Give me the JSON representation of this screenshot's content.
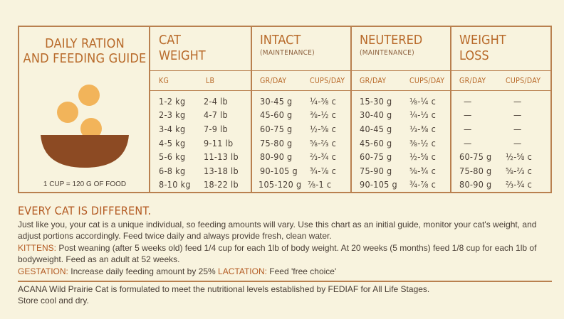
{
  "brand": {
    "title_line1": "DAILY RATION",
    "title_line2": "AND FEEDING GUIDE",
    "cup_note": "1 CUP = 120 G OF FOOD"
  },
  "headers": {
    "cat_weight": {
      "line1": "CAT",
      "line2": "WEIGHT",
      "sub_kg": "KG",
      "sub_lb": "LB"
    },
    "intact": {
      "line1": "INTACT",
      "sub": "(MAINTENANCE)",
      "gr": "GR/DAY",
      "cups": "CUPS/DAY"
    },
    "neutered": {
      "line1": "NEUTERED",
      "sub": "(MAINTENANCE)",
      "gr": "GR/DAY",
      "cups": "CUPS/DAY"
    },
    "weight_loss": {
      "line1": "WEIGHT",
      "line2": "LOSS",
      "gr": "GR/DAY",
      "cups": "CUPS/DAY"
    }
  },
  "rows": [
    {
      "kg": "1-2 kg",
      "lb": "2-4 lb",
      "intact_gr": "30-45 g",
      "intact_cups": "¼-⅜ c",
      "neutered_gr": "15-30 g",
      "neutered_cups": "⅛-¼ c",
      "loss_gr": "—",
      "loss_cups": "—"
    },
    {
      "kg": "2-3 kg",
      "lb": "4-7 lb",
      "intact_gr": "45-60 g",
      "intact_cups": "⅜-½ c",
      "neutered_gr": "30-40 g",
      "neutered_cups": "¼-⅓ c",
      "loss_gr": "—",
      "loss_cups": "—"
    },
    {
      "kg": "3-4 kg",
      "lb": "7-9 lb",
      "intact_gr": "60-75 g",
      "intact_cups": "½-⅝ c",
      "neutered_gr": "40-45 g",
      "neutered_cups": "⅓-⅜ c",
      "loss_gr": "—",
      "loss_cups": "—"
    },
    {
      "kg": "4-5 kg",
      "lb": "9-11 lb",
      "intact_gr": "75-80 g",
      "intact_cups": "⅝-⅔ c",
      "neutered_gr": "45-60 g",
      "neutered_cups": "⅜-½ c",
      "loss_gr": "—",
      "loss_cups": "—"
    },
    {
      "kg": "5-6 kg",
      "lb": "11-13 lb",
      "intact_gr": "80-90 g",
      "intact_cups": "⅔-¾ c",
      "neutered_gr": "60-75 g",
      "neutered_cups": "½-⅝ c",
      "loss_gr": "60-75 g",
      "loss_cups": "½-⅝ c"
    },
    {
      "kg": "6-8 kg",
      "lb": "13-18 lb",
      "intact_gr": "90-105 g",
      "intact_cups": "¾-⅞ c",
      "neutered_gr": "75-90 g",
      "neutered_cups": "⅝-¾ c",
      "loss_gr": "75-80 g",
      "loss_cups": "⅝-⅔ c"
    },
    {
      "kg": "8-10 kg",
      "lb": "18-22 lb",
      "intact_gr": "105-120 g",
      "intact_cups": "⅞-1 c",
      "neutered_gr": "90-105 g",
      "neutered_cups": "¾-⅞ c",
      "loss_gr": "80-90 g",
      "loss_cups": "⅔-¾ c"
    }
  ],
  "text": {
    "section_title": "EVERY CAT IS DIFFERENT.",
    "intro": "Just like you, your cat is a unique individual, so feeding amounts will vary. Use this chart as an initial guide, monitor your cat's weight, and adjust portions accordingly. Feed twice daily and always provide fresh, clean water.",
    "kittens_label": "KITTENS:",
    "kittens_text": " Post weaning (after 5 weeks old) feed 1/4 cup for each 1lb of body weight. At 20 weeks (5 months) feed 1/8 cup for each 1lb of bodyweight. Feed as an adult at 52 weeks.",
    "gestation_label": "GESTATION:",
    "gestation_text": " Increase daily feeding amount by 25% ",
    "lactation_label": "LACTATION:",
    "lactation_text": " Feed 'free choice'",
    "footer_line1": "ACANA Wild Prairie Cat is formulated to meet the nutritional levels established by FEDIAF for All Life Stages.",
    "footer_line2": "Store cool and dry."
  },
  "colors": {
    "accent": "#b35a22",
    "border": "#b9804f",
    "bowl": "#8c4a23",
    "kibble": "#f2b45a",
    "background": "#f8f3de"
  }
}
